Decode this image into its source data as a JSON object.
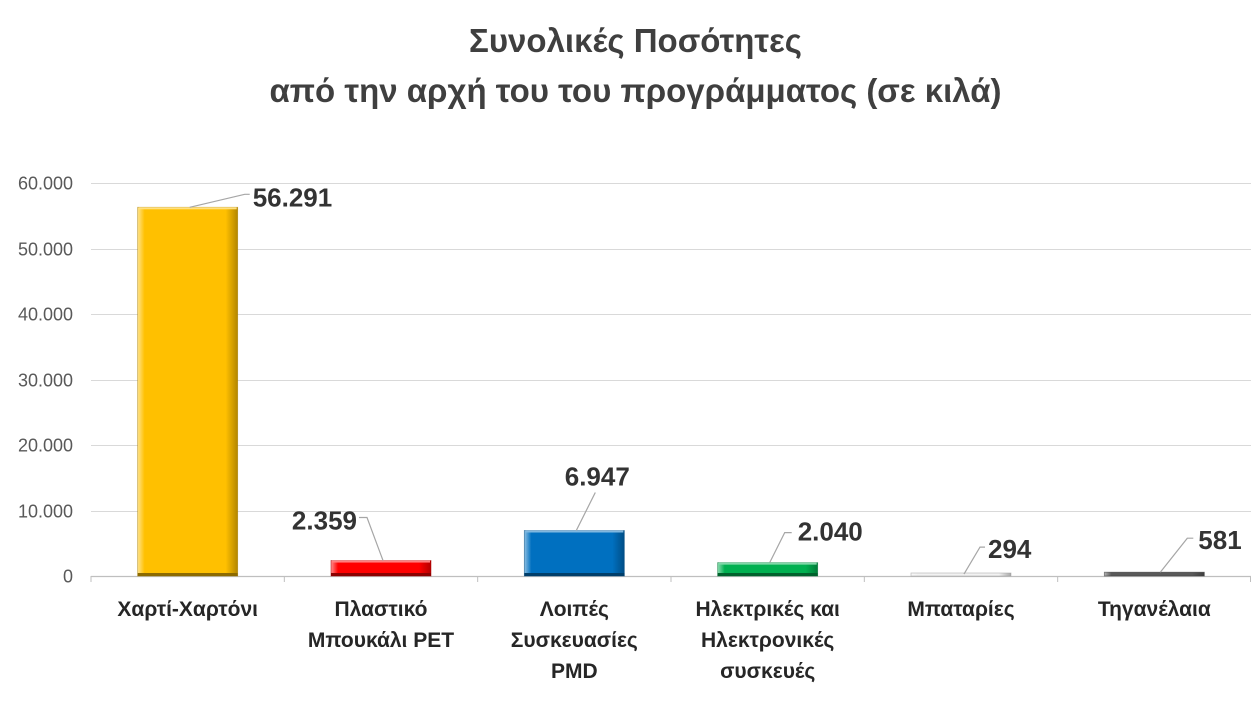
{
  "chart_data": {
    "type": "bar",
    "title": "Συνολικές Ποσότητες",
    "subtitle": "από την αρχή του του προγράμματος (σε κιλά)",
    "xlabel": "",
    "ylabel": "",
    "categories": [
      "Χαρτί-Χαρτόνι",
      "Πλαστικό\nΜπουκάλι PET",
      "Λοιπές\nΣυσκευασίες\nPMD",
      "Ηλεκτρικές και\nΗλεκτρονικές\nσυσκευές",
      "Μπαταρίες",
      "Τηγανέλαια"
    ],
    "values": [
      56291,
      2359,
      6947,
      2040,
      294,
      581
    ],
    "value_labels": [
      "56.291",
      "2.359",
      "6.947",
      "2.040",
      "294",
      "581"
    ],
    "colors": [
      "#FFC000",
      "#FF0000",
      "#0070C0",
      "#00B050",
      "#F2F2F2",
      "#595959"
    ],
    "ylim": [
      0,
      60000
    ],
    "yticks": [
      0,
      10000,
      20000,
      30000,
      40000,
      50000,
      60000
    ],
    "ytick_labels": [
      "0",
      "10.000",
      "20.000",
      "30.000",
      "40.000",
      "50.000",
      "60.000"
    ],
    "grid": true,
    "show_legend": false
  }
}
